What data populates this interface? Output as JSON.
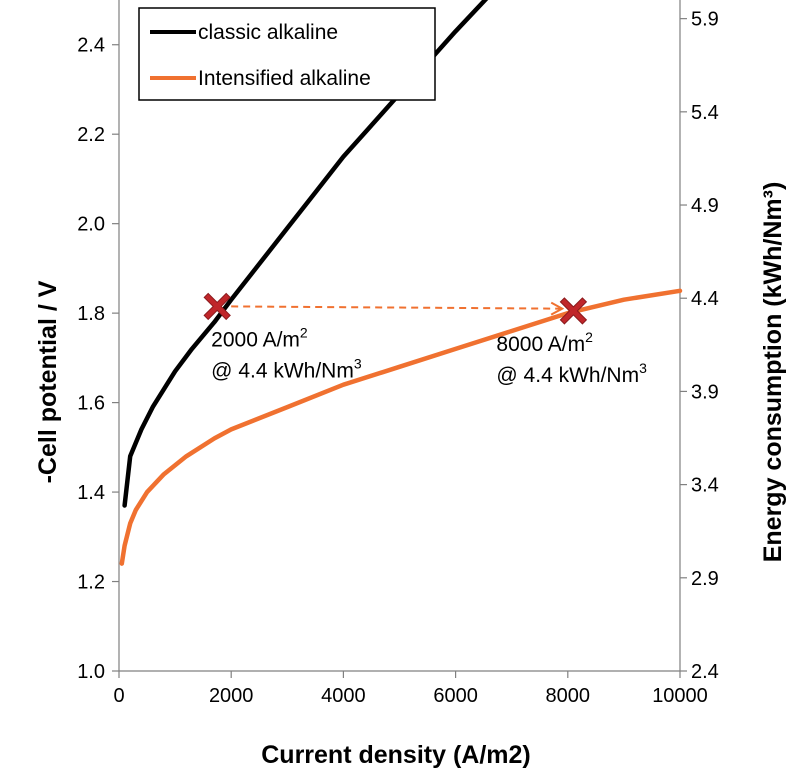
{
  "chart_data": {
    "type": "line",
    "xlabel": "Current density (A/m2)",
    "ylabel": "-Cell potential / V",
    "y2label": "Energy consumption (kWh/Nm³)",
    "xlim": [
      0,
      10000
    ],
    "ylim": [
      1.0,
      2.5
    ],
    "y2lim": [
      2.4,
      6.0
    ],
    "x_ticks": [
      0,
      2000,
      4000,
      6000,
      8000,
      10000
    ],
    "y_ticks": [
      1.0,
      1.2,
      1.4,
      1.6,
      1.8,
      2.0,
      2.2,
      2.4
    ],
    "y2_ticks": [
      2.4,
      2.9,
      3.4,
      3.9,
      4.4,
      4.9,
      5.4,
      5.9
    ],
    "x_tick_labels": [
      "0",
      "2000",
      "4000",
      "6000",
      "8000",
      "10000"
    ],
    "y_tick_labels": [
      "1.0",
      "1.2",
      "1.4",
      "1.6",
      "1.8",
      "2.0",
      "2.2",
      "2.4"
    ],
    "y2_tick_labels": [
      "2.4",
      "2.9",
      "3.4",
      "3.9",
      "4.4",
      "4.9",
      "5.4",
      "5.9"
    ],
    "grid": false,
    "legend_position": "top-left",
    "series": [
      {
        "name": "classic alkaline",
        "color": "#000000",
        "x": [
          100,
          200,
          400,
          600,
          800,
          1000,
          1300,
          1700,
          2000,
          2500,
          3000,
          3500,
          4000,
          4500,
          5000,
          5500,
          6000,
          6600
        ],
        "y": [
          1.37,
          1.48,
          1.54,
          1.59,
          1.63,
          1.67,
          1.72,
          1.78,
          1.83,
          1.91,
          1.99,
          2.07,
          2.15,
          2.22,
          2.29,
          2.36,
          2.43,
          2.51
        ]
      },
      {
        "name": "Intensified alkaline",
        "color": "#f07130",
        "x": [
          50,
          100,
          200,
          300,
          500,
          800,
          1200,
          1700,
          2000,
          3000,
          4000,
          5000,
          6000,
          7000,
          8000,
          9000,
          10000
        ],
        "y": [
          1.24,
          1.28,
          1.33,
          1.36,
          1.4,
          1.44,
          1.48,
          1.52,
          1.54,
          1.59,
          1.64,
          1.68,
          1.72,
          1.76,
          1.8,
          1.83,
          1.85
        ]
      }
    ],
    "markers": [
      {
        "x": 1750,
        "y": 1.815,
        "label_line1": "2000 A/m",
        "label_sup1": "2",
        "label_line2": "@ 4.4 kWh/Nm",
        "label_sup2": "3"
      },
      {
        "x": 8100,
        "y": 1.805,
        "label_line1": "8000 A/m",
        "label_sup1": "2",
        "label_line2": "@ 4.4 kWh/Nm",
        "label_sup2": "3"
      }
    ],
    "arrow": {
      "from": [
        1750,
        1.815
      ],
      "to": [
        7900,
        1.81
      ],
      "color": "#f07130"
    },
    "marker_color": "#c0262a",
    "axis_color": "#808080"
  }
}
